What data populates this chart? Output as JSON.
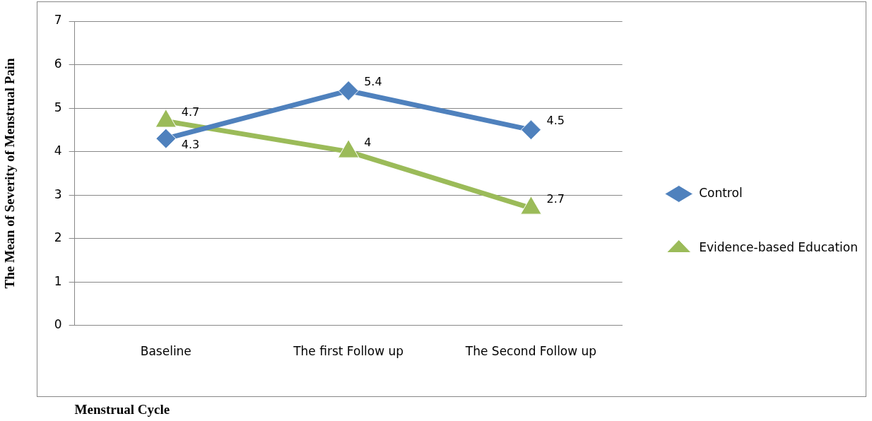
{
  "chart_data": {
    "type": "line",
    "xlabel": "Menstrual Cycle",
    "ylabel": "The Mean of Severity of Menstrual Pain",
    "categories": [
      "Baseline",
      "The first Follow up",
      "The Second Follow up"
    ],
    "series": [
      {
        "name": "Control",
        "color": "#4f81bd",
        "values": [
          4.3,
          5.4,
          4.5
        ],
        "marker": "diamond"
      },
      {
        "name": "Evidence-based Education",
        "color": "#9bbb59",
        "values": [
          4.7,
          4,
          2.7
        ],
        "marker": "triangle"
      }
    ],
    "ylim": [
      0,
      7
    ],
    "yticks": [
      0,
      1,
      2,
      3,
      4,
      5,
      6,
      7
    ],
    "grid": "y",
    "legend": "right",
    "data_labels": true,
    "line_style": "solid"
  }
}
